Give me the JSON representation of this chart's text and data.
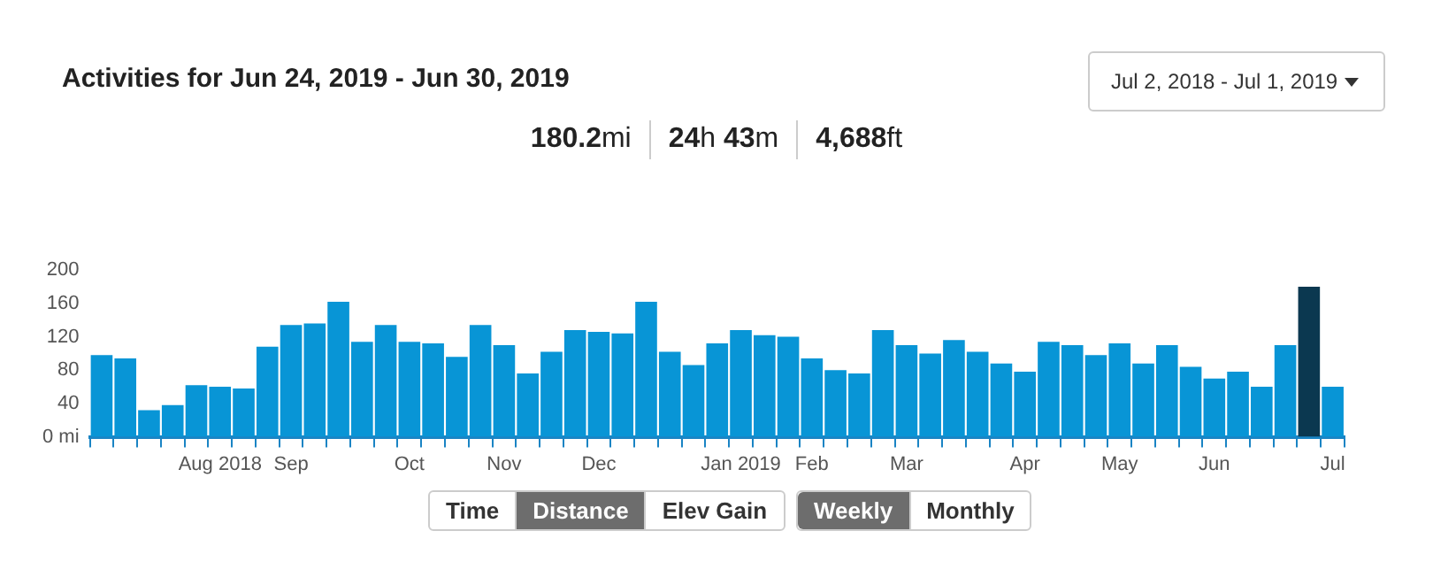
{
  "chart_data": {
    "type": "bar",
    "title": "Activities for Jun 24, 2019 - Jun 30, 2019",
    "annotations": [
      "180.2mi",
      "24h 43m",
      "4,688ft",
      "Jul 2, 2018 - Jul 1, 2019",
      "Time",
      "Distance",
      "Elev Gain",
      "Weekly",
      "Monthly"
    ],
    "categories": [
      null,
      null,
      null,
      null,
      null,
      "Aug 2018",
      null,
      null,
      "Sep",
      null,
      null,
      null,
      null,
      "Oct",
      null,
      null,
      null,
      "Nov",
      null,
      null,
      null,
      "Dec",
      null,
      null,
      null,
      null,
      null,
      "Jan 2019",
      null,
      null,
      "Feb",
      null,
      null,
      null,
      "Mar",
      null,
      null,
      null,
      null,
      "Apr",
      null,
      null,
      null,
      "May",
      null,
      null,
      null,
      "Jun",
      null,
      null,
      null,
      null,
      "Jul"
    ],
    "values": [
      98,
      94,
      32,
      38,
      62,
      60,
      58,
      108,
      134,
      136,
      162,
      114,
      134,
      114,
      112,
      96,
      134,
      110,
      76,
      102,
      128,
      126,
      124,
      162,
      102,
      86,
      112,
      128,
      122,
      120,
      94,
      80,
      76,
      128,
      110,
      100,
      116,
      102,
      88,
      78,
      114,
      110,
      98,
      112,
      88,
      110,
      84,
      70,
      78,
      60,
      110,
      180,
      60
    ],
    "colors": [
      "#0895d6",
      "#0895d6",
      "#0895d6",
      "#0895d6",
      "#0895d6",
      "#0895d6",
      "#0895d6",
      "#0895d6",
      "#0895d6",
      "#0895d6",
      "#0895d6",
      "#0895d6",
      "#0895d6",
      "#0895d6",
      "#0895d6",
      "#0895d6",
      "#0895d6",
      "#0895d6",
      "#0895d6",
      "#0895d6",
      "#0895d6",
      "#0895d6",
      "#0895d6",
      "#0895d6",
      "#0895d6",
      "#0895d6",
      "#0895d6",
      "#0895d6",
      "#0895d6",
      "#0895d6",
      "#0895d6",
      "#0895d6",
      "#0895d6",
      "#0895d6",
      "#0895d6",
      "#0895d6",
      "#0895d6",
      "#0895d6",
      "#0895d6",
      "#0895d6",
      "#0895d6",
      "#0895d6",
      "#0895d6",
      "#0895d6",
      "#0895d6",
      "#0895d6",
      "#0895d6",
      "#0895d6",
      "#0895d6",
      "#0895d6",
      "#0895d6",
      "#0b3850",
      "#0895d6"
    ],
    "ylim": [
      0,
      200
    ],
    "yticks": [
      {
        "value": 0,
        "label": "0 mi"
      },
      200,
      160,
      120,
      80,
      40
    ],
    "grid": false,
    "legend": false
  }
}
